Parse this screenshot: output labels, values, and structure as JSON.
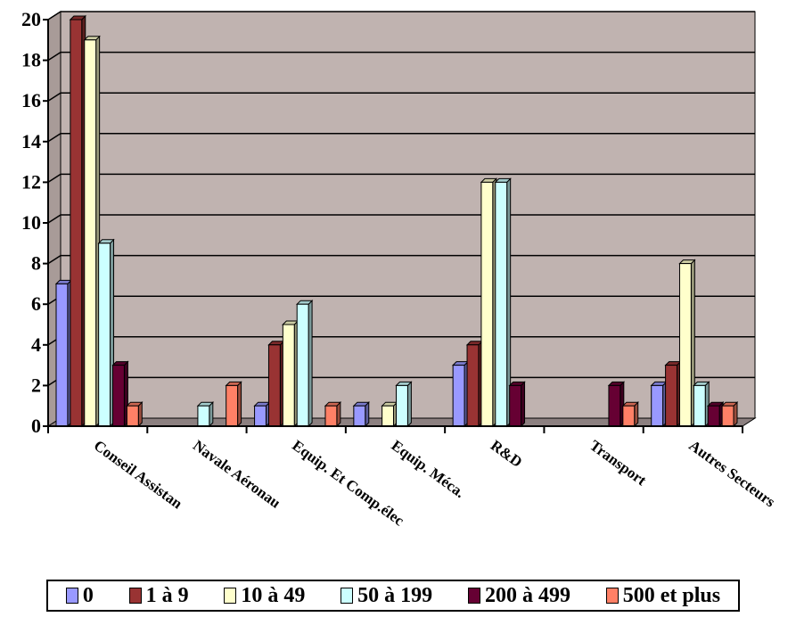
{
  "chart_data": {
    "type": "bar",
    "categories": [
      "Conseil Assistance",
      "Navale Aéronautique",
      "Equip. Et Comp.élec",
      "Equip. Méca.",
      "R&D",
      "Transport",
      "Autres Secteurs"
    ],
    "category_labels_visible": [
      "Conseil Assistan",
      "Navale Aéronau",
      "Equip. Et Comp.élec",
      "Equip. Méca.",
      "R&D",
      "Transport",
      "Autres Secteurs"
    ],
    "series": [
      {
        "name": "0",
        "color": "#9999ff",
        "values": [
          7,
          0,
          1,
          1,
          3,
          0,
          2
        ]
      },
      {
        "name": "1 à 9",
        "color": "#993333",
        "values": [
          20,
          0,
          4,
          0,
          4,
          0,
          3
        ]
      },
      {
        "name": "10 à 49",
        "color": "#ffffcc",
        "values": [
          19,
          0,
          5,
          1,
          12,
          0,
          8
        ]
      },
      {
        "name": "50 à 199",
        "color": "#ccffff",
        "values": [
          9,
          1,
          6,
          2,
          12,
          0,
          2
        ]
      },
      {
        "name": "200 à 499",
        "color": "#660033",
        "values": [
          3,
          0,
          0,
          0,
          2,
          2,
          1
        ]
      },
      {
        "name": "500 et plus",
        "color": "#ff8066",
        "values": [
          1,
          2,
          1,
          0,
          0,
          1,
          1
        ]
      }
    ],
    "yticks": [
      "0",
      "2",
      "4",
      "6",
      "8",
      "10",
      "12",
      "14",
      "16",
      "18",
      "20"
    ],
    "ylim": [
      0,
      20
    ],
    "grid": true,
    "legend_position": "bottom",
    "plot_background": "#c0b3b0"
  }
}
